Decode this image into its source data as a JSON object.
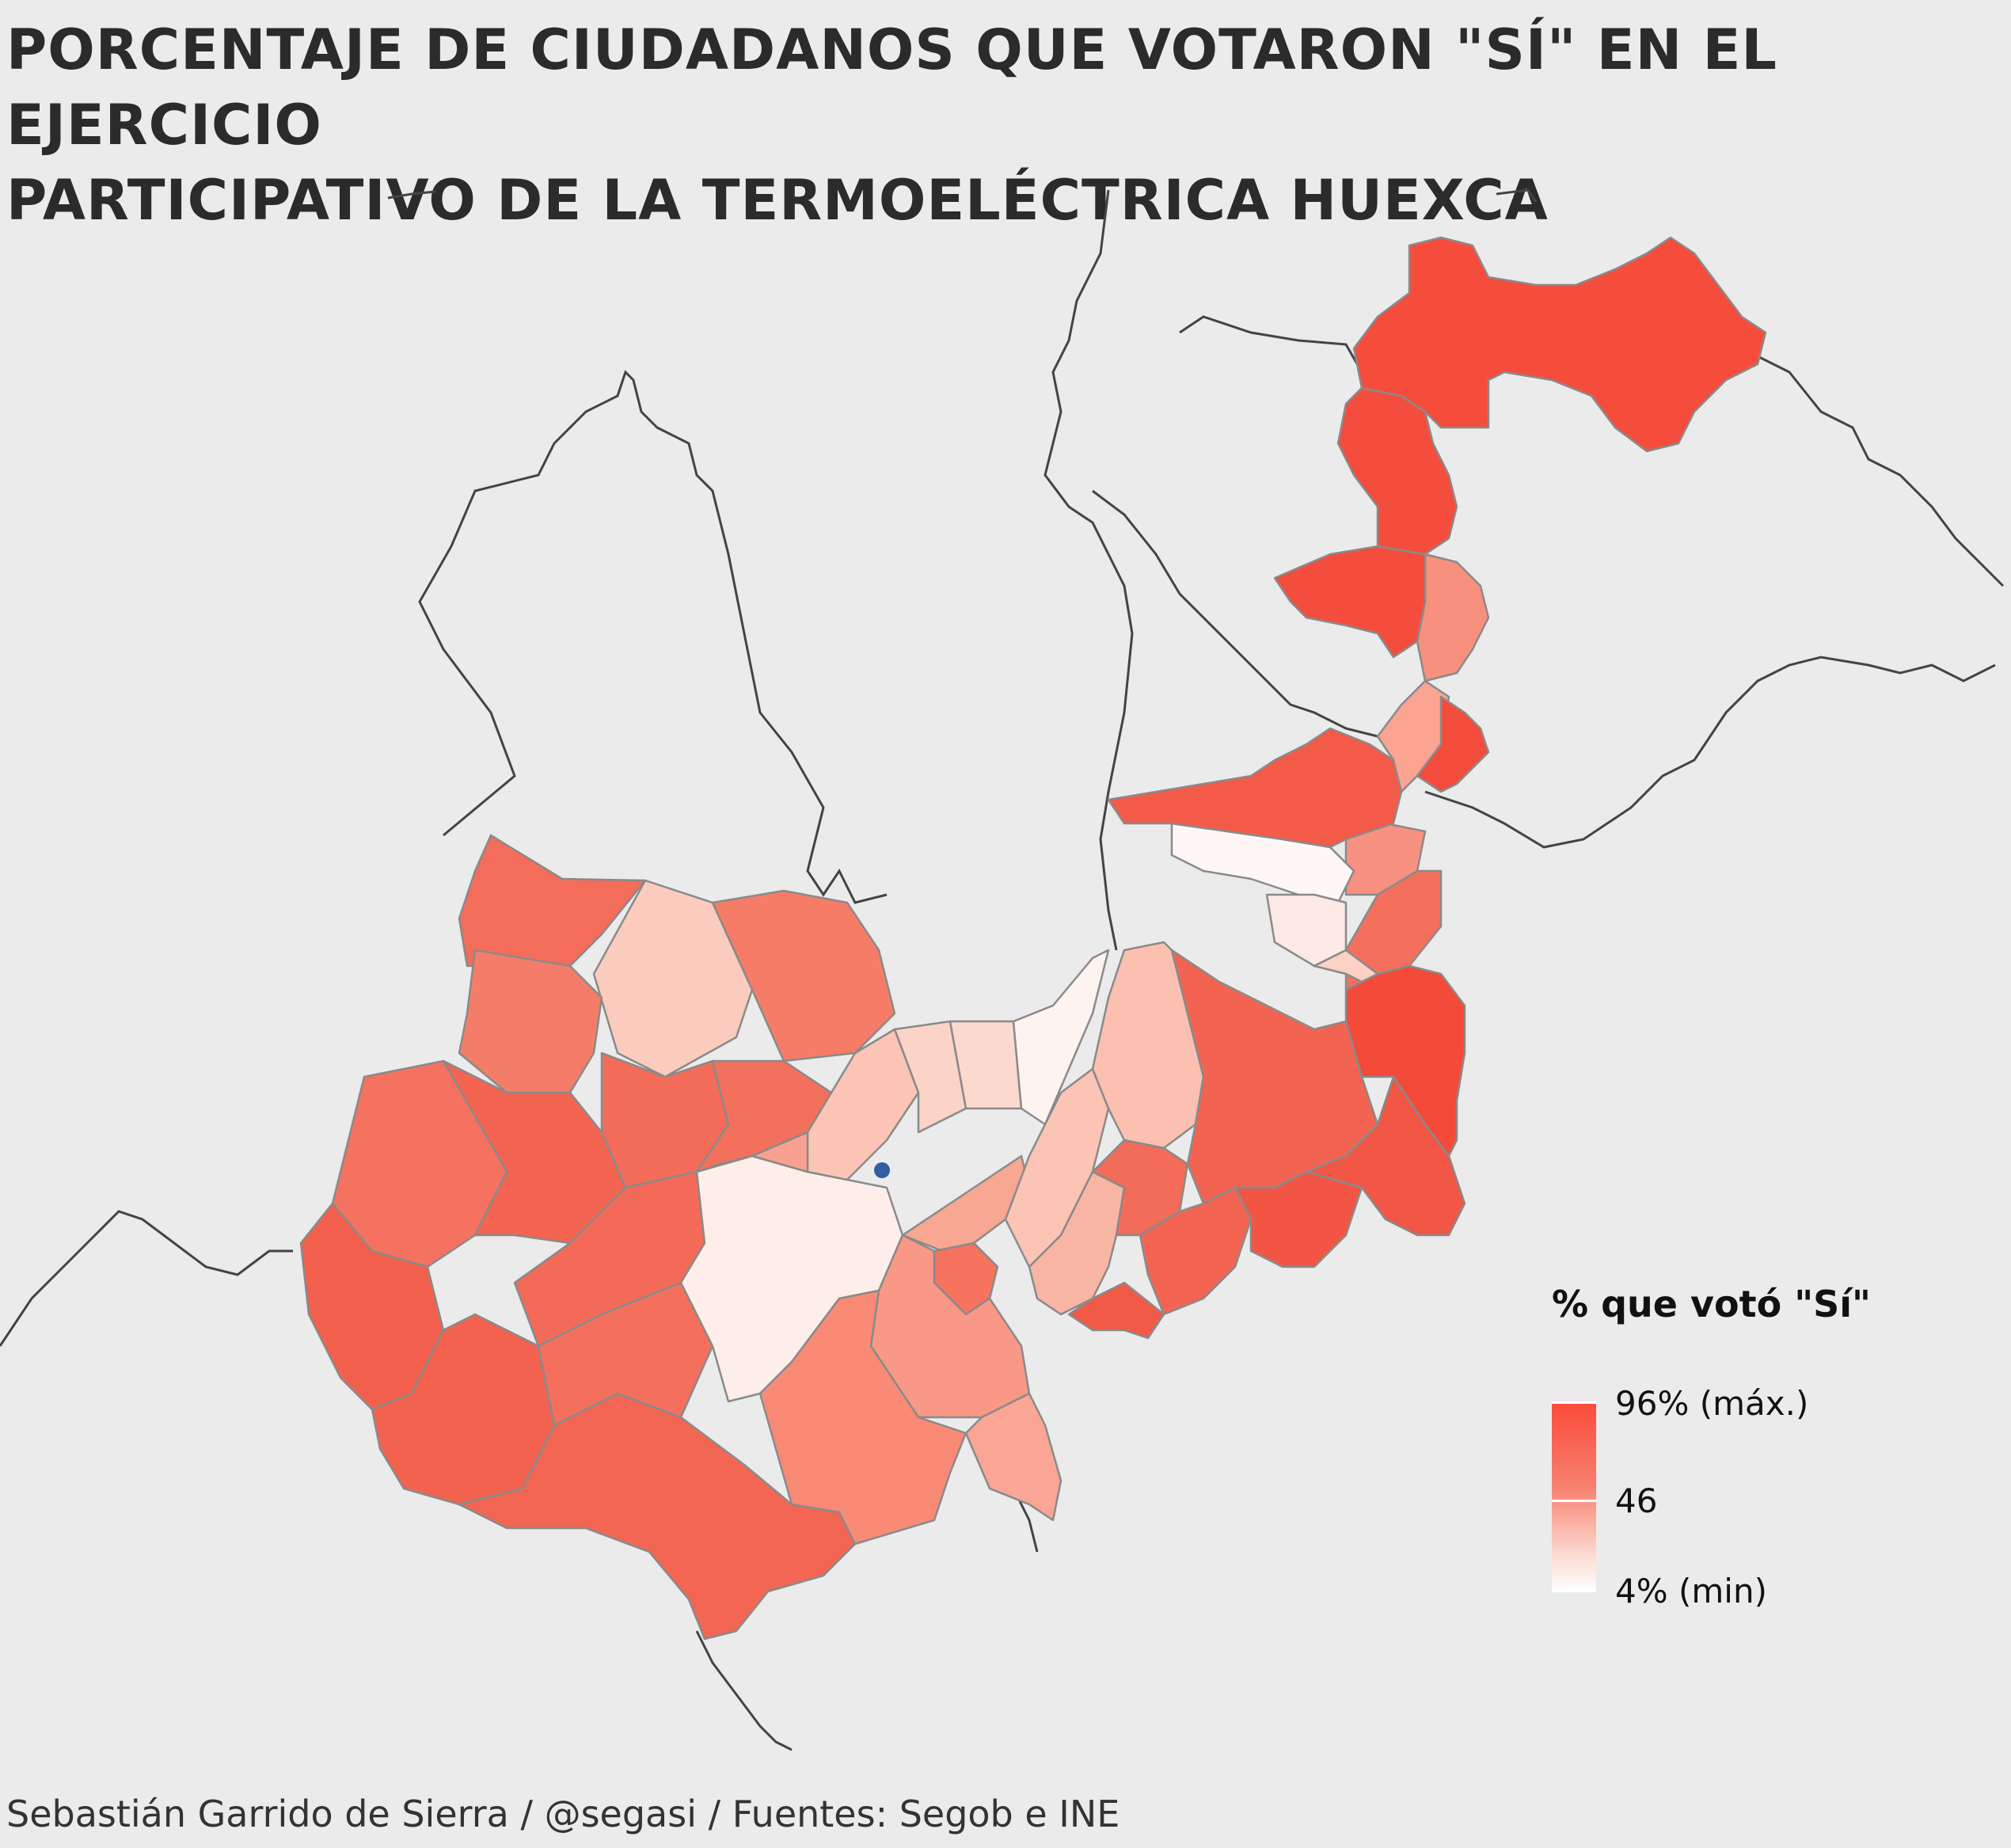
{
  "title": {
    "line1": "PORCENTAJE DE CIUDADANOS QUE VOTARON \"SÍ\" EN EL EJERCICIO",
    "line2": "PARTICIPATIVO DE LA TERMOELÉCTRICA HUEXCA"
  },
  "legend": {
    "title": "% que votó \"Sí\"",
    "labels": [
      "96% (máx.)",
      "46",
      "4% (min)"
    ],
    "colors": {
      "max": "#fb4a3a",
      "mid": "#f7806f",
      "min": "#ffffff"
    }
  },
  "caption": "Sebastián Garrido de Sierra / @segasi / Fuentes: Segob e INE",
  "map": {
    "background_color": "#ebebeb",
    "marker_color": "#2e5fa3",
    "state_border_color": "#444444",
    "municipality_border_color": "#8a8a8a"
  }
}
